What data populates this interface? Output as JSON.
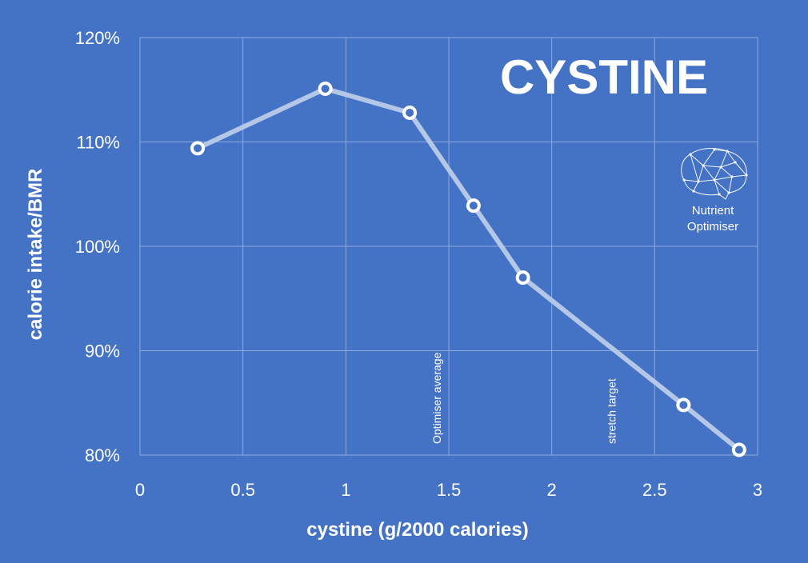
{
  "chart_data": {
    "type": "line",
    "title": "CYSTINE",
    "xlabel": "cystine (g/2000 calories)",
    "ylabel": "calorie intake/BMR",
    "xlim": [
      0,
      3
    ],
    "ylim": [
      80,
      120
    ],
    "x_ticks": [
      "0",
      "0.5",
      "1",
      "1.5",
      "2",
      "2.5",
      "3"
    ],
    "y_ticks": [
      "80%",
      "90%",
      "100%",
      "110%",
      "120%"
    ],
    "grid": true,
    "series": [
      {
        "x": [
          0.28,
          0.9,
          1.31,
          1.62,
          1.86,
          2.64,
          2.91
        ],
        "y": [
          109.4,
          115.1,
          112.8,
          103.9,
          97.0,
          84.8,
          80.5
        ]
      }
    ],
    "annotations": [
      {
        "text": "Optimiser average",
        "x": 1.5
      },
      {
        "text": "stretch target",
        "x": 2.35
      }
    ],
    "colors": {
      "background": "#4472C4",
      "line": "#B4C7E7",
      "marker": "#FFFFFF",
      "grid": "#8FAADC"
    }
  },
  "logo": {
    "line1": "Nutrient",
    "line2": "Optimiser",
    "icon": "brain-network-icon"
  }
}
